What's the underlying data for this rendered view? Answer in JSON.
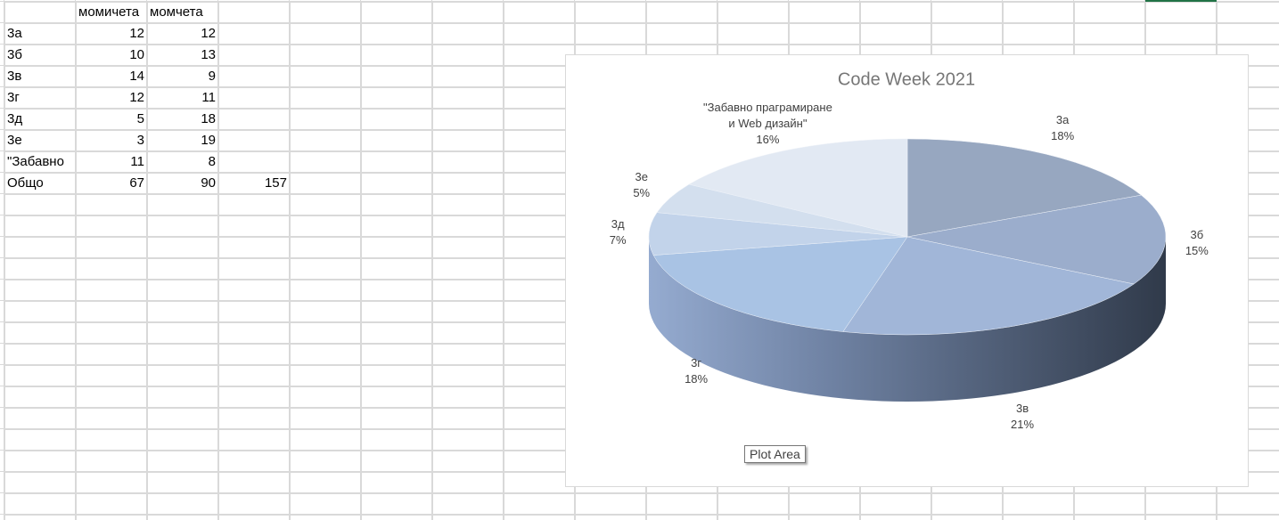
{
  "sheet": {
    "headers": [
      "момичета",
      "момчета"
    ],
    "rows": [
      {
        "label": "3а",
        "values": [
          12,
          12
        ]
      },
      {
        "label": "3б",
        "values": [
          10,
          13
        ]
      },
      {
        "label": "3в",
        "values": [
          14,
          9
        ]
      },
      {
        "label": "3г",
        "values": [
          12,
          11
        ]
      },
      {
        "label": "3д",
        "values": [
          5,
          18
        ]
      },
      {
        "label": "3е",
        "values": [
          3,
          19
        ]
      },
      {
        "label": "\"Забавно",
        "values": [
          11,
          8
        ]
      }
    ],
    "total": {
      "label": "Общо",
      "values": [
        67,
        90
      ],
      "sum": 157
    }
  },
  "chart_data": {
    "type": "pie",
    "title": "Code Week 2021",
    "categories": [
      "3а",
      "3б",
      "3в",
      "3г",
      "3д",
      "3е",
      "\"Забавно прагрaмиране и Web дизайн\""
    ],
    "values": [
      18,
      15,
      21,
      18,
      7,
      5,
      16
    ],
    "value_labels": [
      "18%",
      "15%",
      "21%",
      "18%",
      "7%",
      "5%",
      "16%"
    ],
    "colors": [
      "#97a7c0",
      "#9badcc",
      "#a1b6d8",
      "#a9c3e4",
      "#c2d3ea",
      "#d3dfee",
      "#e2e9f3"
    ]
  },
  "tooltip": "Plot Area"
}
